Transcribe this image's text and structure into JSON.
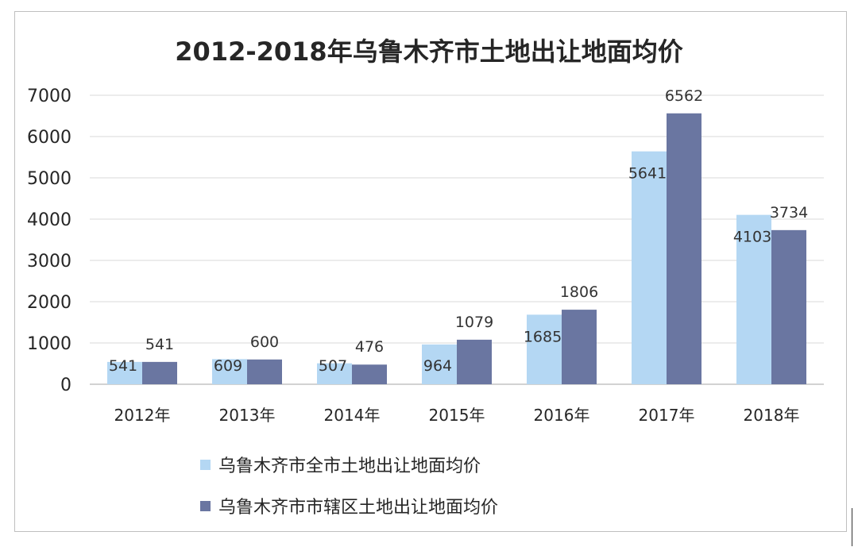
{
  "chart_data": {
    "type": "bar",
    "title": "2012-2018年乌鲁木齐市土地出让地面均价",
    "categories": [
      "2012年",
      "2013年",
      "2014年",
      "2015年",
      "2016年",
      "2017年",
      "2018年"
    ],
    "series": [
      {
        "name": "乌鲁木齐市全市土地出让地面均价",
        "values": [
          541,
          609,
          507,
          964,
          1685,
          5641,
          4103
        ],
        "color": "#b4d7f3"
      },
      {
        "name": "乌鲁木齐市市辖区土地出让地面均价",
        "values": [
          541,
          600,
          476,
          1079,
          1806,
          6562,
          3734
        ],
        "color": "#6a76a1"
      }
    ],
    "ylim": [
      0,
      7000
    ],
    "yticks": [
      0,
      1000,
      2000,
      3000,
      4000,
      5000,
      6000,
      7000
    ],
    "grid": true,
    "legend_position": "bottom"
  }
}
